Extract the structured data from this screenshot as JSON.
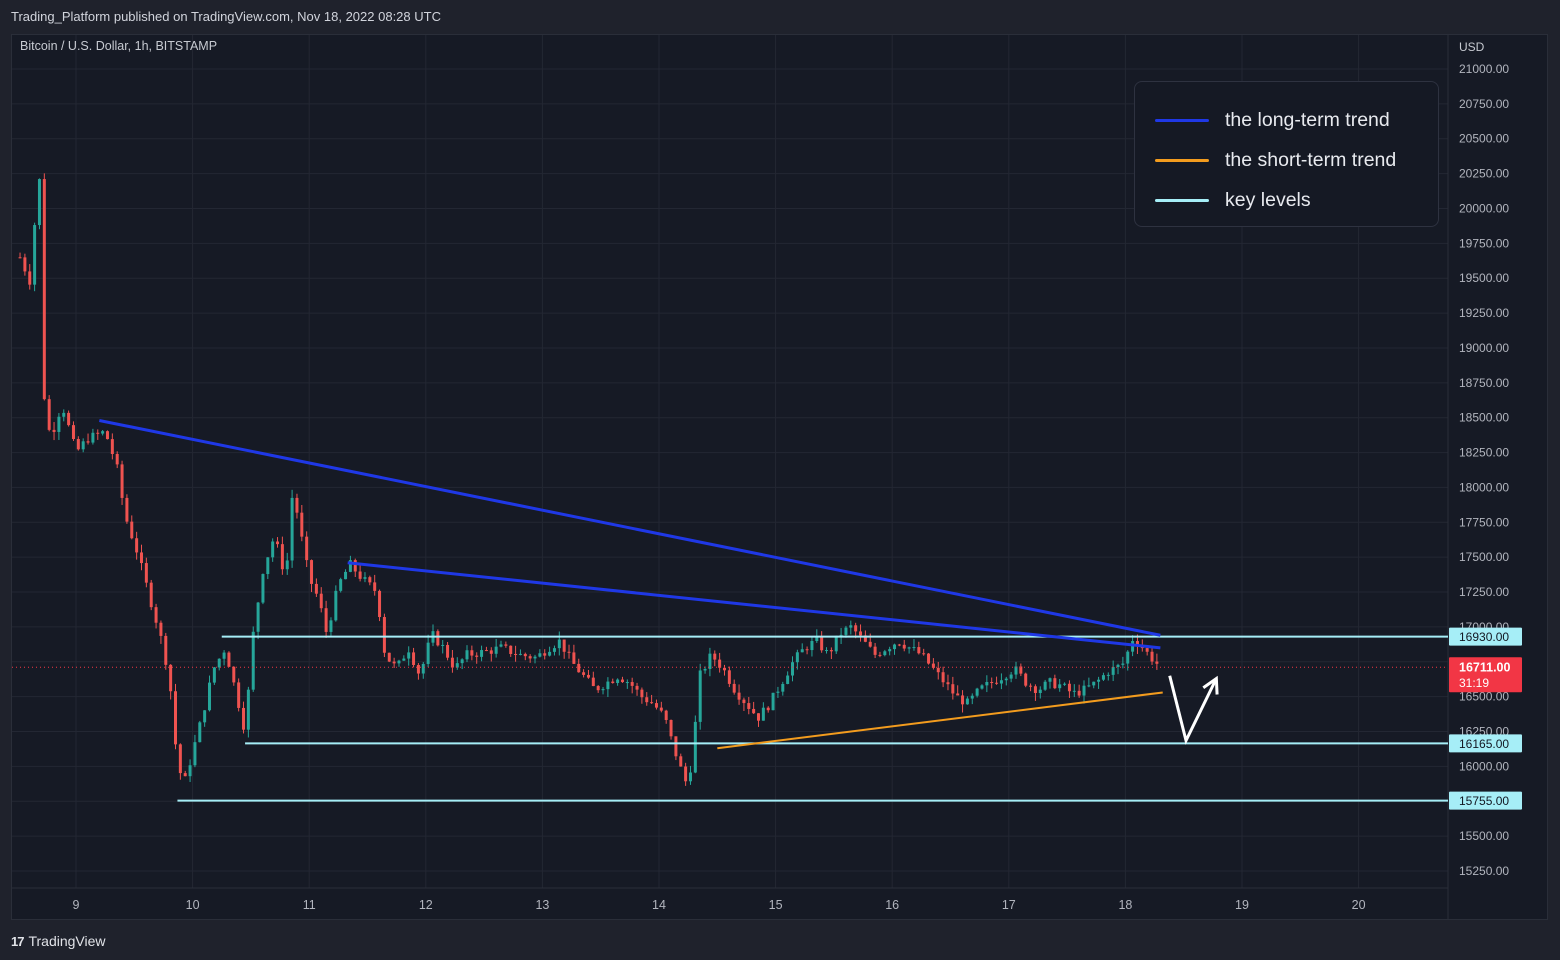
{
  "header": {
    "publisher_line": "Trading_Platform published on TradingView.com, Nov 18, 2022 08:28 UTC",
    "symbol_line": "Bitcoin / U.S. Dollar, 1h, BITSTAMP"
  },
  "footer": {
    "brand": "TradingView",
    "logo_glyph": "17"
  },
  "legend": {
    "items": [
      {
        "label": "the long-term trend",
        "color": "#1f38e6"
      },
      {
        "label": "the short-term trend",
        "color": "#f39c1e"
      },
      {
        "label": "key levels",
        "color": "#a6eef7"
      }
    ]
  },
  "chart_data": {
    "type": "candlestick",
    "title": "Bitcoin / U.S. Dollar, 1h, BITSTAMP",
    "currency_label": "USD",
    "ylim": [
      15050,
      21350
    ],
    "xlim": [
      8.45,
      20.85
    ],
    "y_ticks": [
      21000,
      20750,
      20500,
      20250,
      20000,
      19750,
      19500,
      19250,
      19000,
      18750,
      18500,
      18250,
      18000,
      17750,
      17500,
      17250,
      17000,
      16750,
      16500,
      16250,
      16000,
      15750,
      15500,
      15250
    ],
    "x_ticks": [
      "9",
      "10",
      "11",
      "12",
      "13",
      "14",
      "15",
      "16",
      "17",
      "18",
      "19",
      "20"
    ],
    "current_price": {
      "value": 16711.0,
      "label": "16711.00",
      "countdown": "31:19",
      "color": "#f23645"
    },
    "key_levels": [
      {
        "value": 16930,
        "label": "16930.00",
        "x_start": 10.25
      },
      {
        "value": 16165,
        "label": "16165.00",
        "x_start": 10.45
      },
      {
        "value": 15755,
        "label": "15755.00",
        "x_start": 9.87
      }
    ],
    "trend_lines": [
      {
        "name": "the long-term trend",
        "color": "#1f38e6",
        "points": [
          [
            9.2,
            18480
          ],
          [
            18.3,
            16940
          ]
        ]
      },
      {
        "name": "the long-term trend",
        "color": "#1f38e6",
        "points": [
          [
            11.33,
            17460
          ],
          [
            18.3,
            16850
          ]
        ]
      },
      {
        "name": "the short-term trend",
        "color": "#f39c1e",
        "points": [
          [
            14.5,
            16130
          ],
          [
            18.32,
            16530
          ]
        ]
      }
    ],
    "projection_arrow": {
      "color": "#ffffff",
      "points": [
        [
          18.38,
          16650
        ],
        [
          18.52,
          16185
        ],
        [
          18.78,
          16630
        ]
      ]
    },
    "price_path": [
      [
        8.52,
        19650
      ],
      [
        8.62,
        19450
      ],
      [
        8.68,
        20500
      ],
      [
        8.72,
        18700
      ],
      [
        8.78,
        18350
      ],
      [
        8.88,
        18600
      ],
      [
        9.0,
        18250
      ],
      [
        9.1,
        18350
      ],
      [
        9.25,
        18400
      ],
      [
        9.35,
        18150
      ],
      [
        9.42,
        17800
      ],
      [
        9.52,
        17550
      ],
      [
        9.62,
        17250
      ],
      [
        9.72,
        16950
      ],
      [
        9.8,
        16650
      ],
      [
        9.86,
        16100
      ],
      [
        9.92,
        15850
      ],
      [
        10.0,
        16100
      ],
      [
        10.08,
        16350
      ],
      [
        10.18,
        16700
      ],
      [
        10.28,
        16850
      ],
      [
        10.38,
        16500
      ],
      [
        10.45,
        16250
      ],
      [
        10.52,
        16950
      ],
      [
        10.6,
        17400
      ],
      [
        10.7,
        17650
      ],
      [
        10.8,
        17350
      ],
      [
        10.86,
        18000
      ],
      [
        10.92,
        17700
      ],
      [
        11.0,
        17350
      ],
      [
        11.08,
        17200
      ],
      [
        11.15,
        16950
      ],
      [
        11.25,
        17300
      ],
      [
        11.35,
        17450
      ],
      [
        11.45,
        17350
      ],
      [
        11.58,
        17250
      ],
      [
        11.65,
        16800
      ],
      [
        11.75,
        16700
      ],
      [
        11.85,
        16850
      ],
      [
        11.95,
        16650
      ],
      [
        12.05,
        16950
      ],
      [
        12.15,
        16850
      ],
      [
        12.25,
        16700
      ],
      [
        12.35,
        16800
      ],
      [
        12.5,
        16820
      ],
      [
        12.65,
        16850
      ],
      [
        12.8,
        16800
      ],
      [
        12.95,
        16780
      ],
      [
        13.05,
        16850
      ],
      [
        13.15,
        16900
      ],
      [
        13.25,
        16750
      ],
      [
        13.35,
        16650
      ],
      [
        13.45,
        16550
      ],
      [
        13.55,
        16600
      ],
      [
        13.65,
        16650
      ],
      [
        13.75,
        16600
      ],
      [
        13.85,
        16500
      ],
      [
        13.95,
        16450
      ],
      [
        14.05,
        16350
      ],
      [
        14.12,
        16150
      ],
      [
        14.2,
        15950
      ],
      [
        14.25,
        15850
      ],
      [
        14.3,
        16200
      ],
      [
        14.35,
        16650
      ],
      [
        14.45,
        16800
      ],
      [
        14.55,
        16700
      ],
      [
        14.65,
        16550
      ],
      [
        14.75,
        16450
      ],
      [
        14.85,
        16350
      ],
      [
        14.95,
        16450
      ],
      [
        15.05,
        16600
      ],
      [
        15.15,
        16750
      ],
      [
        15.25,
        16850
      ],
      [
        15.35,
        16900
      ],
      [
        15.45,
        16800
      ],
      [
        15.55,
        16950
      ],
      [
        15.65,
        17000
      ],
      [
        15.75,
        16900
      ],
      [
        15.85,
        16800
      ],
      [
        15.95,
        16850
      ],
      [
        16.05,
        16900
      ],
      [
        16.15,
        16850
      ],
      [
        16.25,
        16800
      ],
      [
        16.35,
        16700
      ],
      [
        16.45,
        16600
      ],
      [
        16.55,
        16500
      ],
      [
        16.65,
        16450
      ],
      [
        16.75,
        16550
      ],
      [
        16.85,
        16600
      ],
      [
        16.95,
        16650
      ],
      [
        17.05,
        16700
      ],
      [
        17.15,
        16600
      ],
      [
        17.25,
        16550
      ],
      [
        17.35,
        16600
      ],
      [
        17.45,
        16580
      ],
      [
        17.55,
        16520
      ],
      [
        17.65,
        16550
      ],
      [
        17.75,
        16600
      ],
      [
        17.85,
        16680
      ],
      [
        17.95,
        16720
      ],
      [
        18.0,
        16750
      ],
      [
        18.05,
        16920
      ],
      [
        18.12,
        16880
      ],
      [
        18.2,
        16800
      ],
      [
        18.3,
        16711
      ]
    ]
  }
}
